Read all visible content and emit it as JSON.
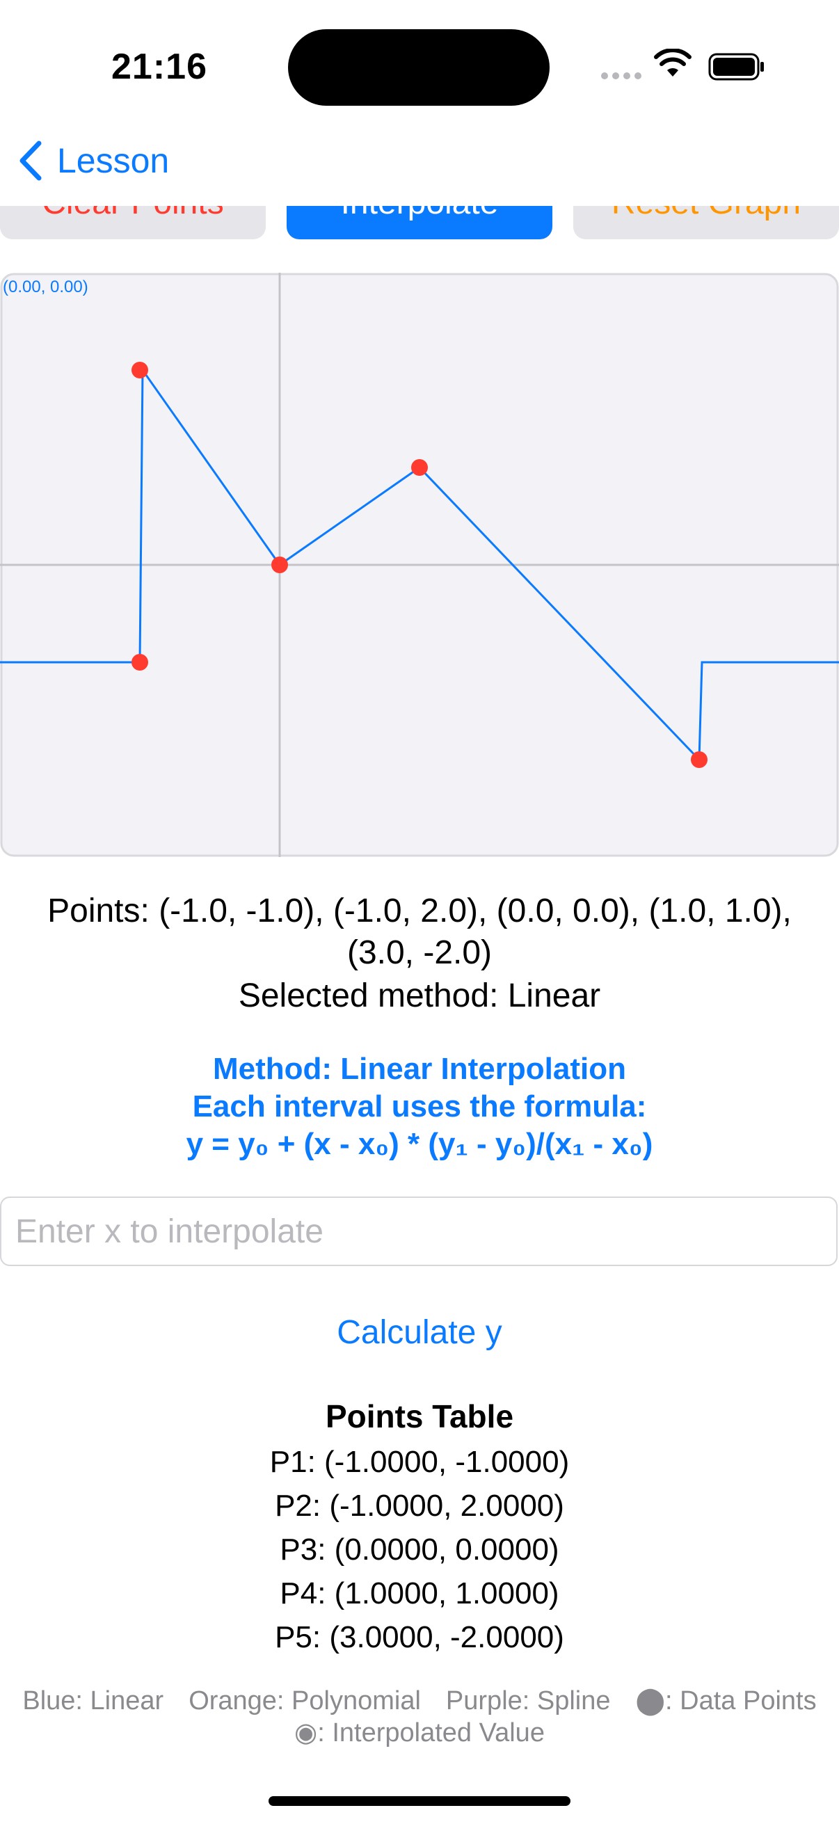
{
  "status_bar": {
    "time": "21:16"
  },
  "nav": {
    "back_label": "Lesson"
  },
  "toolbar": {
    "clear_label": "Clear Points",
    "interpolate_label": "Interpolate",
    "reset_label": "Reset Graph"
  },
  "graph": {
    "corner_label": "(0.00, 0.00)",
    "points": [
      {
        "x": -1.0,
        "y": -1.0
      },
      {
        "x": -1.0,
        "y": 2.0
      },
      {
        "x": 0.0,
        "y": 0.0
      },
      {
        "x": 1.0,
        "y": 1.0
      },
      {
        "x": 3.0,
        "y": -2.0
      }
    ],
    "x_range": [
      -2,
      4
    ],
    "y_range": [
      -3,
      3
    ],
    "line_color": "#0a7aff",
    "point_color": "#ff3b30"
  },
  "summary": {
    "points_text": "Points: (-1.0, -1.0), (-1.0, 2.0), (0.0, 0.0), (1.0, 1.0), (3.0, -2.0)",
    "method_text": "Selected method: Linear"
  },
  "info": {
    "line1": "Method: Linear Interpolation",
    "line2": "Each interval uses the formula:",
    "line3": "y = y₀ + (x - x₀) * (y₁ - y₀)/(x₁ - x₀)"
  },
  "input": {
    "placeholder": "Enter x to interpolate",
    "value": ""
  },
  "calculate": {
    "label": "Calculate y"
  },
  "points_table": {
    "title": "Points Table",
    "rows": [
      "P1: (-1.0000, -1.0000)",
      "P2: (-1.0000, 2.0000)",
      "P3: (0.0000, 0.0000)",
      "P4: (1.0000, 1.0000)",
      "P5: (3.0000, -2.0000)"
    ]
  },
  "legend": {
    "blue": "Blue: Linear",
    "orange": "Orange: Polynomial",
    "purple": "Purple: Spline",
    "data_points": "⬤: Data Points",
    "interpolated": "◉: Interpolated Value"
  }
}
